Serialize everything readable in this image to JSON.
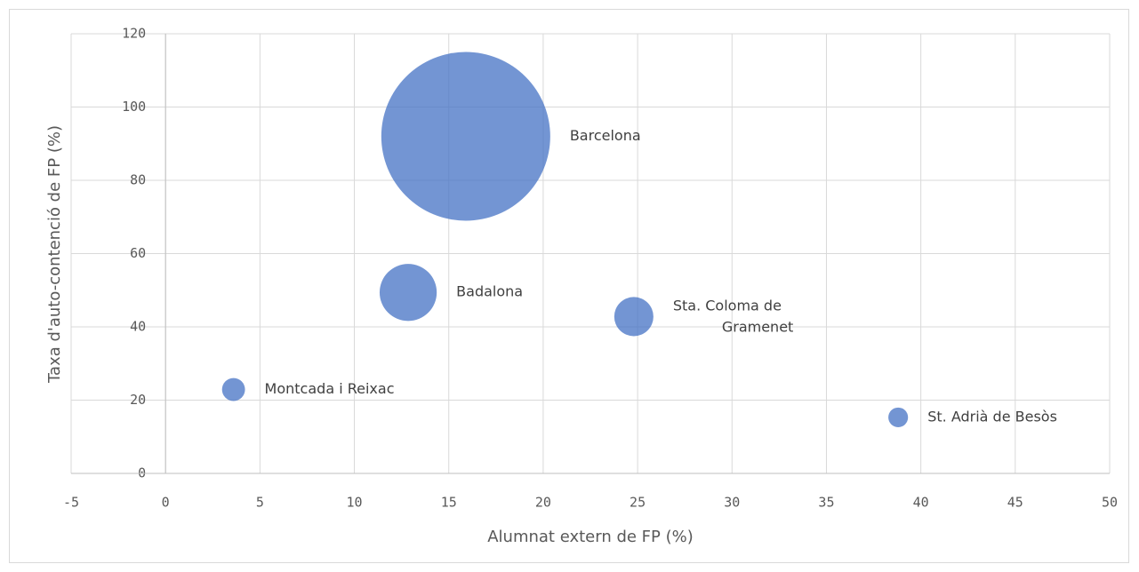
{
  "chart_data": {
    "type": "bubble",
    "x_label": "Alumnat extern de FP (%)",
    "y_label": "Taxa d'auto-contenció de FP (%)",
    "color": "#4472c4",
    "grid": true,
    "labels": [
      "Barcelona",
      "Badalona",
      "Sta. Coloma de\nGramenet",
      "Montcada i Reixac",
      "St. Adrià de Besòs"
    ],
    "x": [
      15.9,
      12.85,
      24.8,
      3.6,
      38.8
    ],
    "values": [
      92,
      49.4,
      42.8,
      22.9,
      15.3
    ],
    "sizes": [
      1620,
      185,
      87,
      30,
      22
    ],
    "xlim": [
      -5,
      50
    ],
    "xticks": [
      -5,
      0,
      5,
      10,
      15,
      20,
      25,
      30,
      35,
      40,
      45,
      50
    ],
    "ylim": [
      0,
      120
    ],
    "yticks": [
      0,
      20,
      40,
      60,
      80,
      100,
      120
    ]
  }
}
